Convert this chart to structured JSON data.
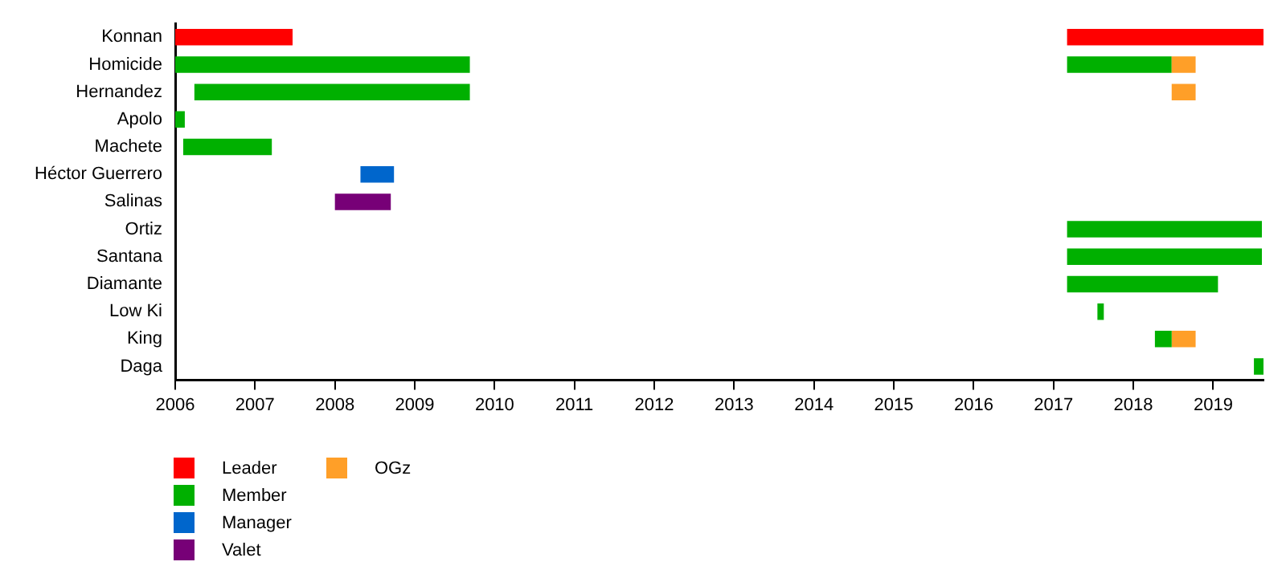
{
  "chart_data": {
    "type": "bar",
    "orientation": "horizontal",
    "categories": [
      "Konnan",
      "Homicide",
      "Hernandez",
      "Apolo",
      "Machete",
      "Héctor Guerrero",
      "Salinas",
      "Ortiz",
      "Santana",
      "Diamante",
      "Low Ki",
      "King",
      "Daga"
    ],
    "series": [
      {
        "name": "Leader",
        "color": "#ff0000",
        "values": [
          1.47,
          null,
          null,
          null,
          null,
          null,
          null,
          null,
          null,
          null,
          null,
          null,
          null
        ],
        "base": [
          2006,
          null,
          null,
          null,
          null,
          null,
          null,
          null,
          null,
          null,
          null,
          null,
          null
        ]
      },
      {
        "name": "Member",
        "color": "#00b000",
        "values": [
          null,
          3.69,
          3.45,
          0.12,
          1.11,
          null,
          null,
          2.44,
          2.44,
          1.89,
          0.08,
          0.21,
          0.12
        ],
        "base": [
          null,
          2006,
          2006.24,
          2006,
          2006.1,
          null,
          null,
          2017.17,
          2017.17,
          2017.17,
          2017.55,
          2018.27,
          2019.51
        ]
      },
      {
        "name": "Manager",
        "color": "#0066cc",
        "values": [
          null,
          null,
          null,
          null,
          null,
          0.42,
          null,
          null,
          null,
          null,
          null,
          null,
          null
        ],
        "base": [
          null,
          null,
          null,
          null,
          null,
          2008.32,
          null,
          null,
          null,
          null,
          null,
          null,
          null
        ]
      },
      {
        "name": "Valet",
        "color": "#770077",
        "values": [
          null,
          null,
          null,
          null,
          null,
          null,
          0.7,
          null,
          null,
          null,
          null,
          null,
          null
        ],
        "base": [
          null,
          null,
          null,
          null,
          null,
          null,
          2008.0,
          null,
          null,
          null,
          null,
          null,
          null
        ]
      },
      {
        "name": "OGz",
        "color": "#ff9f28",
        "values": [
          null,
          0.3,
          0.3,
          null,
          null,
          null,
          null,
          null,
          null,
          null,
          null,
          0.3,
          null
        ],
        "base": [
          null,
          2018.48,
          2018.48,
          null,
          null,
          null,
          null,
          null,
          null,
          null,
          null,
          2018.48,
          null
        ]
      },
      {
        "color": "#ff0000",
        "values": [
          2.46,
          null,
          null,
          null,
          null,
          null,
          null,
          null,
          null,
          null,
          null,
          null,
          null
        ],
        "base": [
          2017.17,
          null,
          null,
          null,
          null,
          null,
          null,
          null,
          null,
          null,
          null,
          null,
          null
        ]
      },
      {
        "color": "#00b000",
        "values": [
          null,
          1.31,
          null,
          null,
          null,
          null,
          null,
          null,
          null,
          null,
          null,
          null,
          null
        ],
        "base": [
          null,
          2017.17,
          null,
          null,
          null,
          null,
          null,
          null,
          null,
          null,
          null,
          null,
          null
        ]
      }
    ],
    "xlim": [
      2006,
      2019.63
    ],
    "xticks": [
      2006,
      2007,
      2008,
      2009,
      2010,
      2011,
      2012,
      2013,
      2014,
      2015,
      2016,
      2017,
      2018,
      2019
    ],
    "grid": false,
    "legend": "bottom left"
  }
}
